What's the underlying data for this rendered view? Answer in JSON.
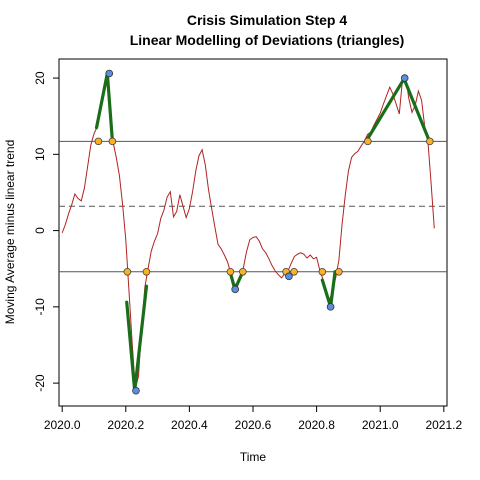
{
  "chart_data": {
    "type": "line",
    "title": "Crisis Simulation Step 4",
    "subtitle": "Linear Modelling of Deviations (triangles)",
    "xlabel": "Time",
    "ylabel": "Moving Average minus linear trend",
    "xlim": [
      2019.99,
      2021.21
    ],
    "ylim": [
      -23,
      22.5
    ],
    "xticks": [
      "2020.0",
      "2020.2",
      "2020.4",
      "2020.6",
      "2020.8",
      "2021.0",
      "2021.2"
    ],
    "yticks": [
      "-20",
      "-10",
      "0",
      "10",
      "20"
    ],
    "grid": false,
    "colors": {
      "series": "#b22222",
      "triangles": "#1a6e1a",
      "crossings": "#ffb020",
      "extremes": "#5a8ee0",
      "hlines": "#555555"
    },
    "hlines": [
      {
        "y": 11.7,
        "style": "solid"
      },
      {
        "y": 3.2,
        "style": "dashed"
      },
      {
        "y": -5.4,
        "style": "solid"
      }
    ],
    "series": [
      {
        "x": [
          2020.0,
          2020.01,
          2020.02,
          2020.03,
          2020.04,
          2020.05,
          2020.06,
          2020.07,
          2020.08,
          2020.09,
          2020.1,
          2020.11,
          2020.12,
          2020.13,
          2020.14,
          2020.15,
          2020.16,
          2020.17,
          2020.18,
          2020.19,
          2020.2,
          2020.21,
          2020.22,
          2020.23,
          2020.24,
          2020.25,
          2020.26,
          2020.27,
          2020.28,
          2020.29,
          2020.3,
          2020.31,
          2020.32,
          2020.33,
          2020.34,
          2020.35,
          2020.36,
          2020.37,
          2020.38,
          2020.39,
          2020.4,
          2020.41,
          2020.42,
          2020.43,
          2020.44,
          2020.45,
          2020.46,
          2020.47,
          2020.48,
          2020.49,
          2020.5,
          2020.51,
          2020.52,
          2020.53,
          2020.54,
          2020.55,
          2020.56,
          2020.57,
          2020.58,
          2020.59,
          2020.6,
          2020.61,
          2020.62,
          2020.63,
          2020.64,
          2020.65,
          2020.66,
          2020.67,
          2020.68,
          2020.69,
          2020.7,
          2020.71,
          2020.72,
          2020.73,
          2020.74,
          2020.75,
          2020.76,
          2020.77,
          2020.78,
          2020.79,
          2020.8,
          2020.81,
          2020.82,
          2020.83,
          2020.84,
          2020.85,
          2020.86,
          2020.87,
          2020.88,
          2020.89,
          2020.9,
          2020.91,
          2020.92,
          2020.93,
          2020.94,
          2020.95,
          2020.96,
          2020.97,
          2020.98,
          2020.99,
          2021.0,
          2021.01,
          2021.02,
          2021.03,
          2021.04,
          2021.05,
          2021.06,
          2021.07,
          2021.08,
          2021.09,
          2021.1,
          2021.11,
          2021.12,
          2021.13,
          2021.14,
          2021.15,
          2021.16,
          2021.17
        ],
        "y": [
          -0.3,
          0.8,
          2.2,
          3.4,
          4.8,
          4.2,
          3.9,
          5.6,
          8.4,
          11.2,
          12.7,
          13.6,
          15.9,
          18.7,
          20.7,
          16.8,
          11.6,
          9.6,
          7.2,
          3.4,
          -1.2,
          -7.9,
          -14.7,
          -20.7,
          -19.1,
          -12.6,
          -7.4,
          -5.0,
          -2.7,
          -1.4,
          -0.4,
          1.6,
          2.7,
          4.4,
          5.1,
          1.8,
          2.5,
          4.7,
          3.2,
          1.7,
          2.9,
          5.1,
          7.8,
          9.8,
          10.6,
          8.6,
          5.4,
          2.9,
          0.5,
          -1.8,
          -2.4,
          -3.2,
          -4.1,
          -5.6,
          -6.8,
          -7.5,
          -6.1,
          -4.8,
          -2.7,
          -1.2,
          -0.9,
          -0.8,
          -1.4,
          -2.4,
          -2.9,
          -3.7,
          -4.6,
          -5.3,
          -5.8,
          -6.2,
          -5.6,
          -5.3,
          -4.3,
          -3.4,
          -3.1,
          -2.9,
          -3.1,
          -3.6,
          -3.2,
          -3.7,
          -3.5,
          -5.2,
          -6.4,
          -7.7,
          -9.2,
          -7.9,
          -6.2,
          -3.9,
          0.8,
          4.6,
          7.8,
          9.6,
          10.1,
          10.4,
          11.1,
          11.7,
          12.6,
          12.9,
          13.8,
          14.6,
          15.4,
          16.6,
          17.7,
          18.8,
          17.9,
          16.6,
          15.3,
          19.8,
          20.2,
          17.3,
          15.5,
          16.4,
          18.3,
          17.1,
          13.6,
          11.7,
          6.2,
          0.3
        ]
      }
    ],
    "triangles": [
      {
        "x": [
          2020.108,
          2020.142,
          2020.158
        ],
        "y": [
          13.5,
          20.6,
          11.7
        ]
      },
      {
        "x": [
          2020.203,
          2020.228,
          2020.265
        ],
        "y": [
          -9.4,
          -21.0,
          -7.3
        ]
      },
      {
        "x": [
          2020.528,
          2020.543,
          2020.568
        ],
        "y": [
          -5.4,
          -7.7,
          -5.4
        ]
      },
      {
        "x": [
          2020.703,
          2020.713,
          2020.728
        ],
        "y": [
          -5.4,
          -6.0,
          -5.4
        ]
      },
      {
        "x": [
          2020.818,
          2020.844,
          2020.858
        ],
        "y": [
          -6.5,
          -10.0,
          -5.4
        ]
      },
      {
        "x": [
          2020.96,
          2021.075,
          2021.155
        ],
        "y": [
          12.0,
          19.9,
          11.7
        ]
      }
    ],
    "extremes": [
      {
        "x": 2020.148,
        "y": 20.6
      },
      {
        "x": 2020.232,
        "y": -21.0
      },
      {
        "x": 2020.544,
        "y": -7.7
      },
      {
        "x": 2020.713,
        "y": -6.0
      },
      {
        "x": 2020.844,
        "y": -10.0
      },
      {
        "x": 2021.077,
        "y": 20.0
      }
    ],
    "crossings": [
      {
        "x": 2020.114,
        "y": 11.7
      },
      {
        "x": 2020.158,
        "y": 11.7
      },
      {
        "x": 2020.205,
        "y": -5.4
      },
      {
        "x": 2020.265,
        "y": -5.4
      },
      {
        "x": 2020.529,
        "y": -5.4
      },
      {
        "x": 2020.568,
        "y": -5.4
      },
      {
        "x": 2020.704,
        "y": -5.4
      },
      {
        "x": 2020.729,
        "y": -5.4
      },
      {
        "x": 2020.818,
        "y": -5.4
      },
      {
        "x": 2020.87,
        "y": -5.4
      },
      {
        "x": 2020.961,
        "y": 11.7
      },
      {
        "x": 2021.156,
        "y": 11.7
      }
    ]
  }
}
